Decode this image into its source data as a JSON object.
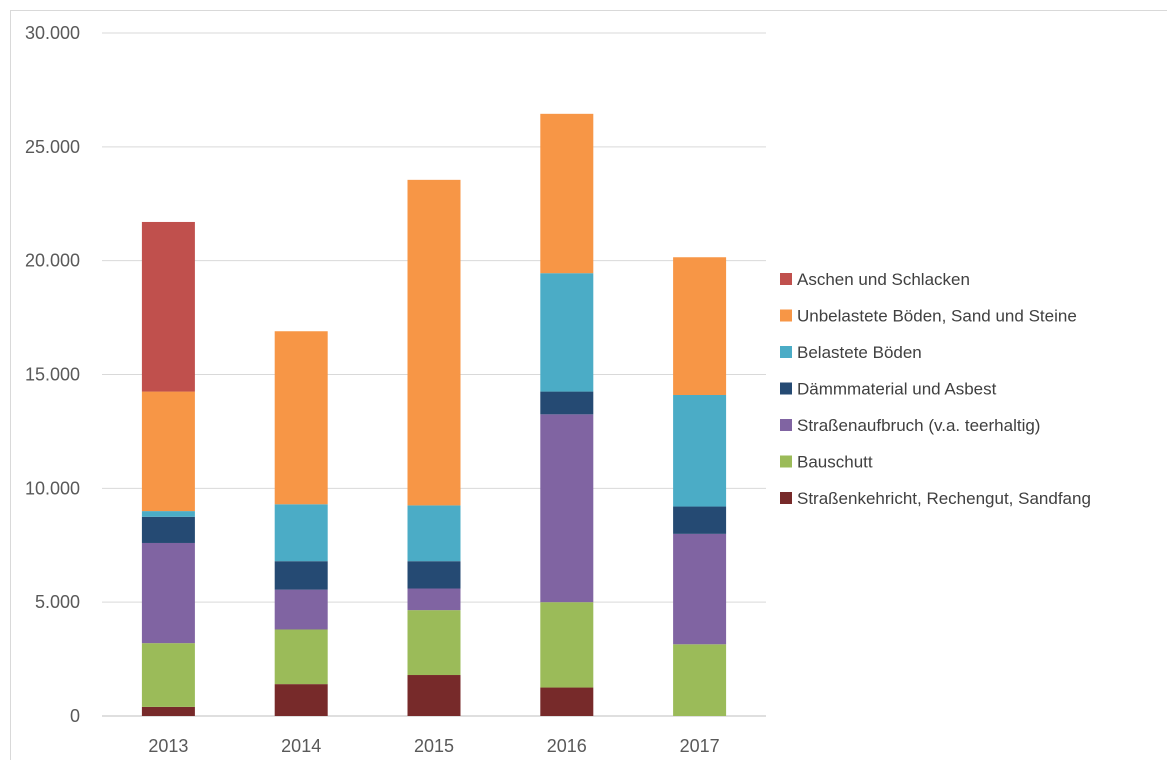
{
  "chart_data": {
    "type": "bar",
    "stacked": true,
    "categories": [
      "2013",
      "2014",
      "2015",
      "2016",
      "2017"
    ],
    "ylim": [
      0,
      30000
    ],
    "yticks": [
      0,
      5000,
      10000,
      15000,
      20000,
      25000,
      30000
    ],
    "ytick_labels": [
      "0",
      "5.000",
      "10.000",
      "15.000",
      "20.000",
      "25.000",
      "30.000"
    ],
    "grid": true,
    "legend_position": "right",
    "series": [
      {
        "name": "Straßenkehricht, Rechengut, Sandfang",
        "color": "#772a2a",
        "values": [
          400,
          1400,
          1800,
          1250,
          0
        ]
      },
      {
        "name": "Bauschutt",
        "color": "#9bbb59",
        "values": [
          2800,
          2400,
          2850,
          3750,
          3150
        ]
      },
      {
        "name": "Straßenaufbruch (v.a. teerhaltig)",
        "color": "#8064a2",
        "values": [
          4400,
          1750,
          950,
          8250,
          4850
        ]
      },
      {
        "name": "Dämmmaterial und Asbest",
        "color": "#254a73",
        "values": [
          1150,
          1250,
          1200,
          1000,
          1200
        ]
      },
      {
        "name": "Belastete Böden",
        "color": "#4bacc6",
        "values": [
          250,
          2500,
          2450,
          5200,
          4900
        ]
      },
      {
        "name": "Unbelastete Böden, Sand und Steine",
        "color": "#f79646",
        "values": [
          5250,
          7600,
          14300,
          7000,
          6050
        ]
      },
      {
        "name": "Aschen und Schlacken",
        "color": "#c0504d",
        "values": [
          7450,
          0,
          0,
          0,
          0
        ]
      }
    ]
  }
}
